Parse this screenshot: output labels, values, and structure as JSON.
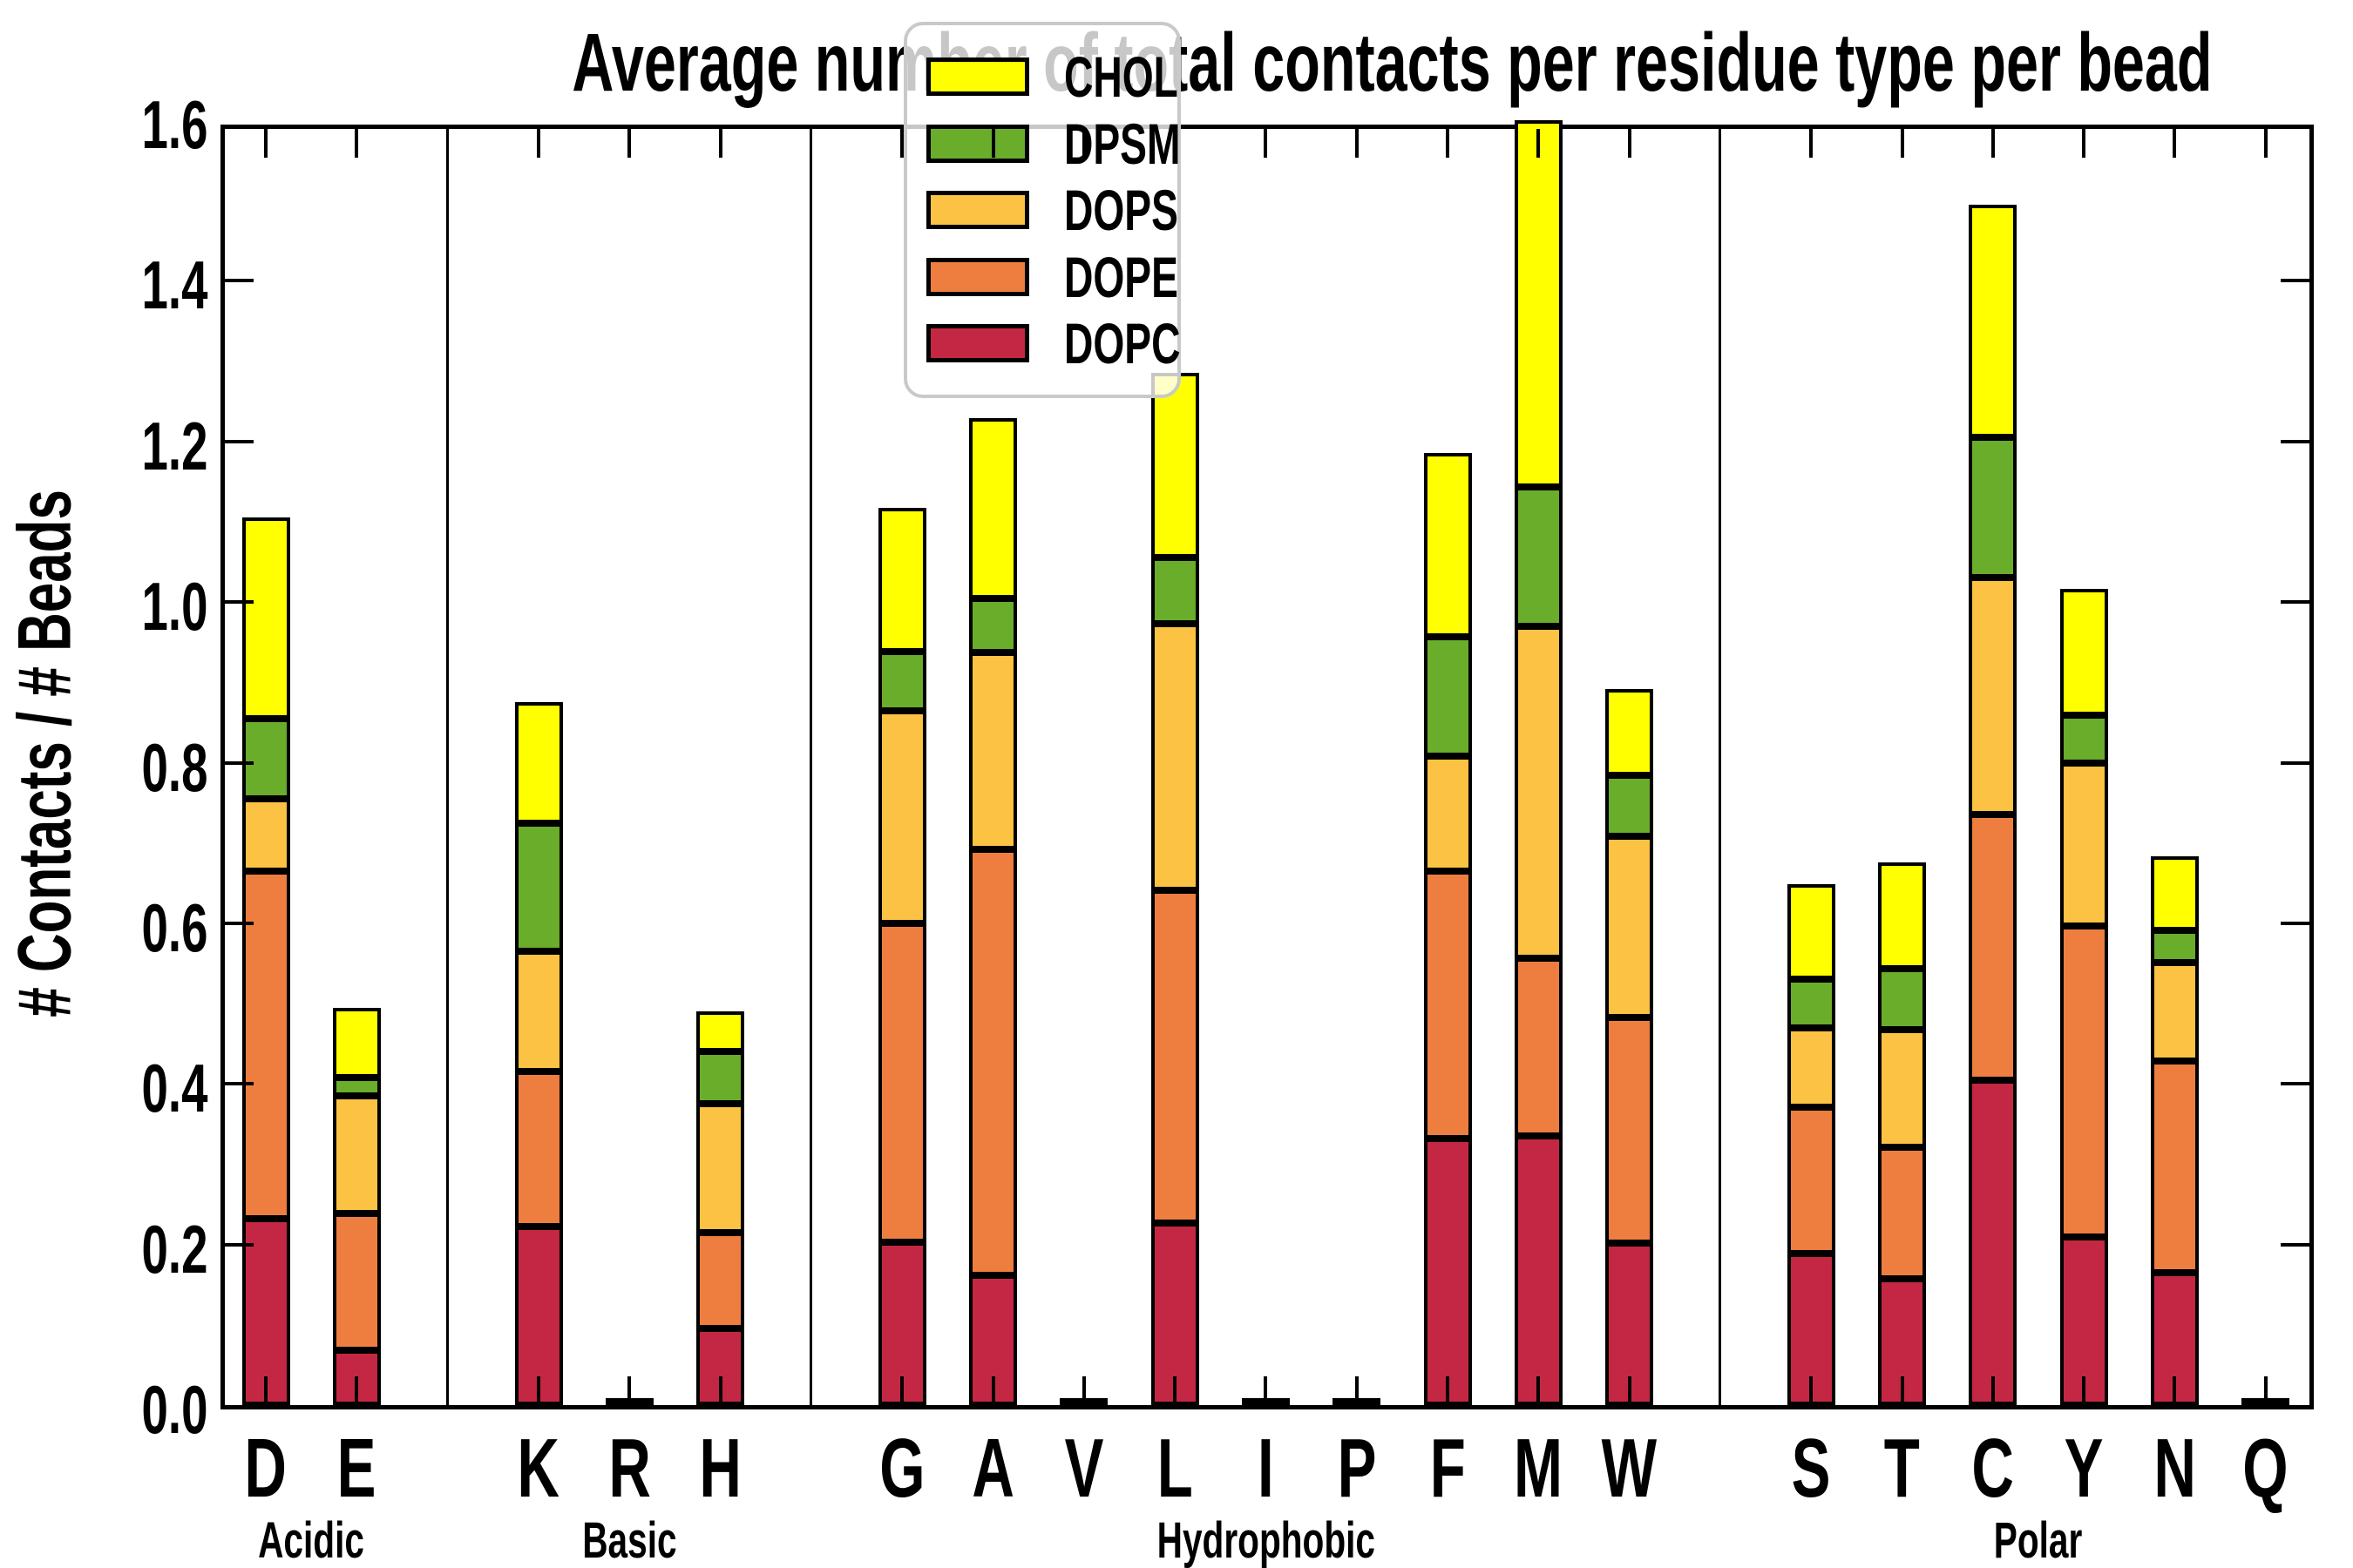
{
  "title": "Average number of total contacts per residue type per bead",
  "ylabel": "# Contacts / # Beads",
  "yticks": [
    "0.0",
    "0.2",
    "0.4",
    "0.6",
    "0.8",
    "1.0",
    "1.2",
    "1.4",
    "1.6"
  ],
  "legend": [
    {
      "label": "CHOL",
      "color": "#FFFF00"
    },
    {
      "label": "DPSM",
      "color": "#69AD2B"
    },
    {
      "label": "DOPS",
      "color": "#FBC243"
    },
    {
      "label": "DOPE",
      "color": "#EE7E3F"
    },
    {
      "label": "DOPC",
      "color": "#C42743"
    }
  ],
  "chart_data": {
    "type": "bar",
    "stacked": true,
    "title": "Average number of total contacts per residue type per bead",
    "xlabel": "",
    "ylabel": "# Contacts / # Beads",
    "ylim": [
      0,
      1.6
    ],
    "ytick_step": 0.2,
    "grid": false,
    "legend_position": "upper center-left inside plot",
    "series_order_bottom_to_top": [
      "DOPC",
      "DOPE",
      "DOPS",
      "DPSM",
      "CHOL"
    ],
    "series_colors": {
      "DOPC": "#C42743",
      "DOPE": "#EE7E3F",
      "DOPS": "#FBC243",
      "DPSM": "#69AD2B",
      "CHOL": "#FFFF00"
    },
    "groups": [
      {
        "label": "Acidic",
        "residues": [
          "D",
          "E"
        ]
      },
      {
        "label": "Basic",
        "residues": [
          "K",
          "R",
          "H"
        ]
      },
      {
        "label": "Hydrophobic",
        "residues": [
          "G",
          "A",
          "V",
          "L",
          "I",
          "P",
          "F",
          "M",
          "W"
        ]
      },
      {
        "label": "Polar",
        "residues": [
          "S",
          "T",
          "C",
          "Y",
          "N",
          "Q"
        ]
      }
    ],
    "note": "M bar CHOL segment is clipped at the top of the axis (total exceeds 1.6). L bar top is partially hidden behind the semi-transparent legend.",
    "residues": [
      {
        "label": "D",
        "group": "Acidic",
        "slot": 0,
        "DOPC": 0.232,
        "DOPE": 0.433,
        "DOPS": 0.09,
        "DPSM": 0.1,
        "CHOL": 0.25
      },
      {
        "label": "E",
        "group": "Acidic",
        "slot": 1,
        "DOPC": 0.068,
        "DOPE": 0.171,
        "DOPS": 0.146,
        "DPSM": 0.023,
        "CHOL": 0.087
      },
      {
        "label": "K",
        "group": "Basic",
        "slot": 3,
        "DOPC": 0.222,
        "DOPE": 0.193,
        "DOPS": 0.15,
        "DPSM": 0.16,
        "CHOL": 0.15
      },
      {
        "label": "R",
        "group": "Basic",
        "slot": 4,
        "DOPC": 0.003,
        "DOPE": 0.0,
        "DOPS": 0.0,
        "DPSM": 0.0,
        "CHOL": 0.0
      },
      {
        "label": "H",
        "group": "Basic",
        "slot": 5,
        "DOPC": 0.095,
        "DOPE": 0.12,
        "DOPS": 0.16,
        "DPSM": 0.065,
        "CHOL": 0.05
      },
      {
        "label": "G",
        "group": "Hydrophobic",
        "slot": 7,
        "DOPC": 0.203,
        "DOPE": 0.397,
        "DOPS": 0.265,
        "DPSM": 0.073,
        "CHOL": 0.179
      },
      {
        "label": "A",
        "group": "Hydrophobic",
        "slot": 8,
        "DOPC": 0.162,
        "DOPE": 0.53,
        "DOPS": 0.245,
        "DPSM": 0.068,
        "CHOL": 0.224
      },
      {
        "label": "V",
        "group": "Hydrophobic",
        "slot": 9,
        "DOPC": 0.003,
        "DOPE": 0.0,
        "DOPS": 0.0,
        "DPSM": 0.0,
        "CHOL": 0.0
      },
      {
        "label": "L",
        "group": "Hydrophobic",
        "slot": 10,
        "DOPC": 0.227,
        "DOPE": 0.414,
        "DOPS": 0.332,
        "DPSM": 0.083,
        "CHOL": 0.229
      },
      {
        "label": "I",
        "group": "Hydrophobic",
        "slot": 11,
        "DOPC": 0.003,
        "DOPE": 0.0,
        "DOPS": 0.0,
        "DPSM": 0.0,
        "CHOL": 0.0
      },
      {
        "label": "P",
        "group": "Hydrophobic",
        "slot": 12,
        "DOPC": 0.004,
        "DOPE": 0.0,
        "DOPS": 0.0,
        "DPSM": 0.0,
        "CHOL": 0.0
      },
      {
        "label": "F",
        "group": "Hydrophobic",
        "slot": 13,
        "DOPC": 0.332,
        "DOPE": 0.333,
        "DOPS": 0.143,
        "DPSM": 0.149,
        "CHOL": 0.229
      },
      {
        "label": "M",
        "group": "Hydrophobic",
        "slot": 14,
        "DOPC": 0.335,
        "DOPE": 0.222,
        "DOPS": 0.413,
        "DPSM": 0.173,
        "CHOL": 0.46,
        "clipped_at_ymax": true
      },
      {
        "label": "W",
        "group": "Hydrophobic",
        "slot": 15,
        "DOPC": 0.202,
        "DOPE": 0.281,
        "DOPS": 0.225,
        "DPSM": 0.076,
        "CHOL": 0.108
      },
      {
        "label": "S",
        "group": "Polar",
        "slot": 17,
        "DOPC": 0.189,
        "DOPE": 0.182,
        "DOPS": 0.099,
        "DPSM": 0.06,
        "CHOL": 0.119
      },
      {
        "label": "T",
        "group": "Polar",
        "slot": 18,
        "DOPC": 0.157,
        "DOPE": 0.164,
        "DOPS": 0.147,
        "DPSM": 0.076,
        "CHOL": 0.132
      },
      {
        "label": "C",
        "group": "Polar",
        "slot": 19,
        "DOPC": 0.405,
        "DOPE": 0.33,
        "DOPS": 0.295,
        "DPSM": 0.175,
        "CHOL": 0.29
      },
      {
        "label": "Y",
        "group": "Polar",
        "slot": 20,
        "DOPC": 0.209,
        "DOPE": 0.388,
        "DOPS": 0.203,
        "DPSM": 0.059,
        "CHOL": 0.157
      },
      {
        "label": "N",
        "group": "Polar",
        "slot": 21,
        "DOPC": 0.165,
        "DOPE": 0.264,
        "DOPS": 0.122,
        "DPSM": 0.04,
        "CHOL": 0.092
      },
      {
        "label": "Q",
        "group": "Polar",
        "slot": 22,
        "DOPC": 0.003,
        "DOPE": 0.0,
        "DOPS": 0.0,
        "DPSM": 0.0,
        "CHOL": 0.0
      }
    ],
    "separator_slots": [
      2,
      6,
      16
    ]
  }
}
